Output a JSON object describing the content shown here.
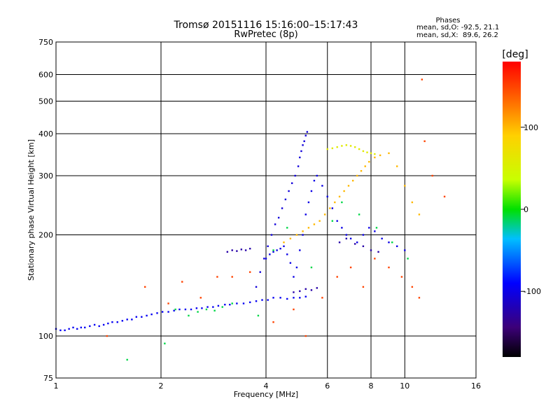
{
  "chart_data": {
    "type": "scatter",
    "title": "Tromsø 20151116 15:16:00–15:17:43",
    "subtitle": "RwPretec (8p)",
    "xlabel": "Frequency [MHz]",
    "ylabel": "Stationary phase Virtual Height [km]",
    "x_scale": "log",
    "y_scale": "log",
    "xlim": [
      1,
      16
    ],
    "ylim": [
      75,
      750
    ],
    "x_ticks": [
      "1",
      "2",
      "4",
      "6",
      "8",
      "10",
      "16"
    ],
    "y_ticks": [
      "75",
      "100",
      "200",
      "300",
      "400",
      "500",
      "600",
      "750"
    ],
    "grid": true,
    "phase_box": {
      "title": "Phases",
      "line_o": "mean, sd,O: -92.5, 21.1",
      "line_x": "mean, sd,X:  89.6, 26.2"
    },
    "colorbar": {
      "label": "[deg]",
      "range": [
        -180,
        180
      ],
      "ticks": [
        "100",
        "0",
        "-100"
      ],
      "colormap": "rainbow"
    },
    "series": [
      {
        "color_value": -95,
        "x": [
          1.0,
          1.03,
          1.06,
          1.09,
          1.12,
          1.15,
          1.18,
          1.21,
          1.25,
          1.29,
          1.33,
          1.37,
          1.41,
          1.45,
          1.5,
          1.55,
          1.6,
          1.65,
          1.7,
          1.76,
          1.82,
          1.88,
          1.95,
          2.02,
          2.1,
          2.18,
          2.26,
          2.35,
          2.44,
          2.53,
          2.62,
          2.72,
          2.82,
          2.92,
          3.05,
          3.15,
          3.3,
          3.45,
          3.6,
          3.75,
          3.9,
          4.05,
          4.2,
          4.4,
          4.6,
          4.8,
          5.0,
          5.2
        ],
        "y": [
          105,
          104,
          104,
          105,
          106,
          105,
          106,
          106,
          107,
          108,
          107,
          108,
          109,
          110,
          110,
          111,
          112,
          112,
          114,
          114,
          115,
          116,
          117,
          118,
          118,
          119,
          120,
          120,
          120,
          121,
          121,
          122,
          122,
          123,
          124,
          124,
          125,
          125,
          126,
          127,
          128,
          128,
          130,
          130,
          129,
          130,
          130,
          131
        ]
      },
      {
        "color_value": -105,
        "x": [
          3.75,
          3.85,
          3.95,
          4.05,
          4.15,
          4.25,
          4.35,
          4.45,
          4.55,
          4.65,
          4.75,
          4.85,
          4.95,
          5.0,
          5.05,
          5.1,
          5.15,
          5.2,
          5.25
        ],
        "y": [
          140,
          155,
          170,
          185,
          200,
          215,
          225,
          240,
          255,
          270,
          285,
          300,
          320,
          340,
          355,
          370,
          380,
          395,
          405
        ]
      },
      {
        "color_value": -100,
        "x": [
          4.0,
          4.1,
          4.2,
          4.3,
          4.4,
          4.5,
          4.6,
          4.7,
          4.8,
          4.9,
          5.0,
          5.1,
          5.2,
          5.3,
          5.4,
          5.5,
          5.6,
          5.8,
          6.0,
          6.2,
          6.4,
          6.6,
          6.8,
          7.0,
          7.3,
          7.6,
          7.9,
          8.2,
          8.6,
          9.0,
          9.5,
          10.0
        ],
        "y": [
          170,
          175,
          178,
          180,
          182,
          185,
          175,
          165,
          150,
          160,
          180,
          200,
          230,
          250,
          270,
          290,
          300,
          280,
          260,
          240,
          220,
          210,
          200,
          195,
          190,
          200,
          210,
          205,
          195,
          190,
          185,
          180
        ]
      },
      {
        "color_value": -125,
        "x": [
          3.1,
          3.2,
          3.3,
          3.4,
          3.5,
          3.6,
          4.8,
          5.0,
          5.2,
          5.4,
          5.6,
          6.5,
          6.8,
          7.2,
          7.6,
          8.0,
          8.4
        ],
        "y": [
          178,
          180,
          179,
          181,
          180,
          182,
          135,
          136,
          138,
          137,
          139,
          190,
          195,
          188,
          185,
          180,
          178
        ]
      },
      {
        "color_value": 100,
        "x": [
          4.5,
          4.7,
          4.9,
          5.1,
          5.3,
          5.5,
          5.7,
          5.9,
          6.1,
          6.3,
          6.5,
          6.7,
          6.9,
          7.1,
          7.3,
          7.5,
          7.7,
          7.9,
          8.2,
          8.5,
          9.0,
          9.5,
          10.0,
          10.5,
          11.0
        ],
        "y": [
          190,
          195,
          200,
          205,
          210,
          215,
          220,
          230,
          240,
          250,
          260,
          270,
          280,
          290,
          300,
          310,
          320,
          330,
          340,
          345,
          350,
          320,
          280,
          250,
          230
        ]
      },
      {
        "color_value": 60,
        "x": [
          6.0,
          6.2,
          6.4,
          6.6,
          6.8,
          7.0,
          7.2,
          7.4,
          7.6,
          7.8,
          8.0,
          8.2
        ],
        "y": [
          360,
          362,
          365,
          368,
          370,
          368,
          365,
          360,
          355,
          352,
          350,
          348
        ]
      },
      {
        "color_value": 150,
        "x": [
          1.4,
          1.8,
          2.1,
          2.3,
          2.6,
          2.9,
          3.2,
          3.6,
          4.2,
          4.8,
          5.2,
          5.8,
          6.4,
          7.0,
          7.6,
          8.2,
          9.0,
          9.8,
          10.5,
          11.0,
          11.2,
          11.4,
          12.0,
          13.0
        ],
        "y": [
          100,
          140,
          125,
          145,
          130,
          150,
          150,
          155,
          110,
          120,
          100,
          130,
          150,
          160,
          140,
          170,
          160,
          150,
          140,
          130,
          580,
          380,
          300,
          260
        ]
      },
      {
        "color_value": -10,
        "x": [
          1.6,
          2.05,
          2.2,
          2.4,
          2.55,
          2.7,
          2.85,
          3.0,
          3.2,
          3.8,
          4.2,
          4.6,
          5.4,
          6.2,
          6.6,
          7.4,
          8.3,
          9.2,
          10.2
        ],
        "y": [
          85,
          95,
          120,
          115,
          118,
          120,
          119,
          122,
          125,
          115,
          180,
          210,
          160,
          220,
          250,
          230,
          210,
          190,
          170
        ]
      }
    ]
  }
}
